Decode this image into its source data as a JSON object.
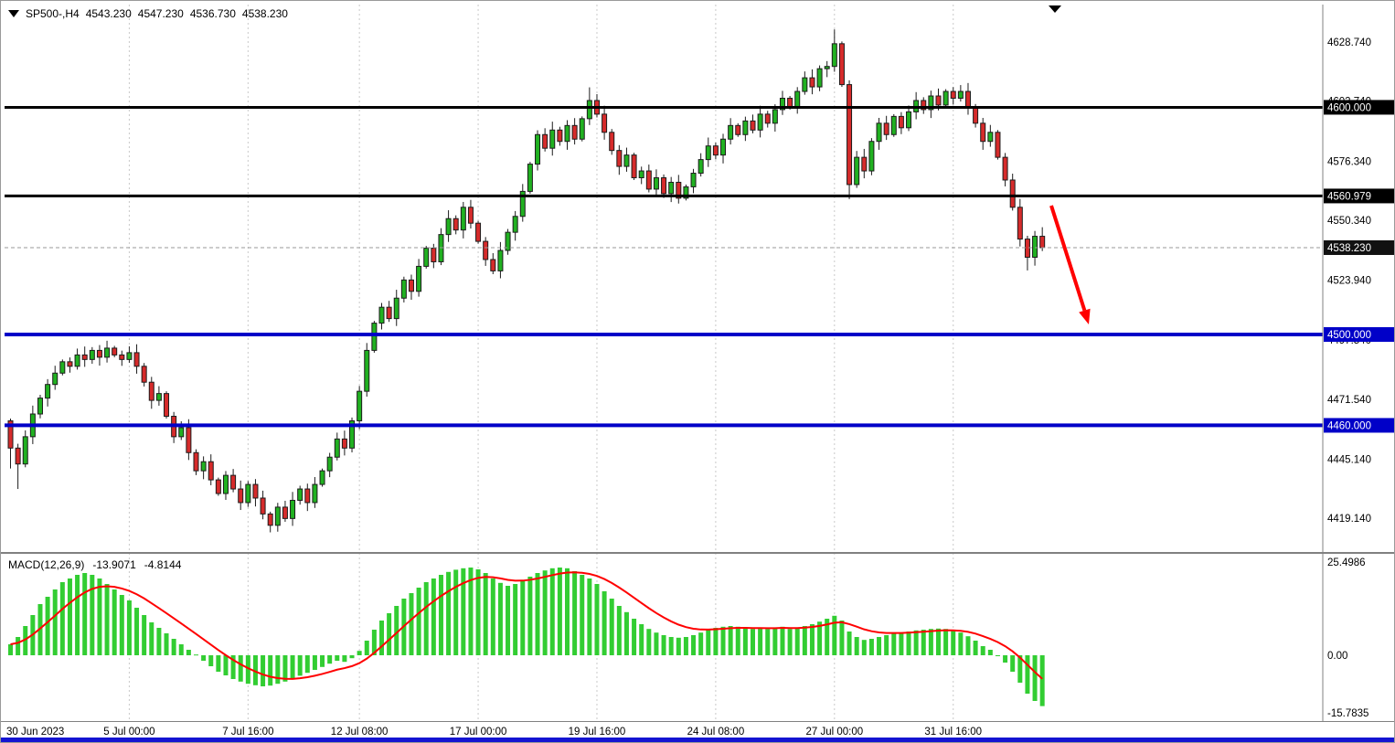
{
  "header": {
    "symbol_tf": "SP500-,H4",
    "open": "4543.230",
    "high": "4547.230",
    "low": "4536.730",
    "close": "4538.230"
  },
  "chart_data": {
    "type": "candlestick",
    "symbol": "SP500-",
    "timeframe": "H4",
    "price_ylim": [
      4404.6,
      4643.6
    ],
    "first_open": 4462,
    "closes": [
      4450,
      4443,
      4455,
      4465,
      4472,
      4478,
      4483,
      4488,
      4486,
      4491,
      4489,
      4493,
      4490,
      4494,
      4491,
      4489,
      4492,
      4486,
      4479,
      4471,
      4474,
      4464,
      4455,
      4459,
      4448,
      4440,
      4444,
      4436,
      4430,
      4438,
      4432,
      4426,
      4434,
      4428,
      4421,
      4416,
      4424,
      4419,
      4427,
      4432,
      4426,
      4434,
      4440,
      4446,
      4454,
      4450,
      4462,
      4475,
      4493,
      4505,
      4512,
      4507,
      4516,
      4524,
      4519,
      4530,
      4538,
      4532,
      4544,
      4551,
      4546,
      4556,
      4549,
      4541,
      4533,
      4528,
      4537,
      4545,
      4552,
      4563,
      4575,
      4588,
      4582,
      4590,
      4585,
      4592,
      4586,
      4595,
      4603,
      4597,
      4589,
      4581,
      4574,
      4579,
      4569,
      4572,
      4564,
      4569,
      4562,
      4567,
      4560,
      4565,
      4571,
      4577,
      4583,
      4579,
      4586,
      4592,
      4588,
      4594,
      4590,
      4597,
      4593,
      4599,
      4604,
      4600,
      4607,
      4613,
      4609,
      4617,
      4618,
      4628,
      4610,
      4566,
      4578,
      4572,
      4585,
      4593,
      4588,
      4596,
      4591,
      4598,
      4603,
      4599,
      4605,
      4601,
      4607,
      4604,
      4607,
      4600,
      4593,
      4585,
      4589,
      4578,
      4568,
      4556,
      4542,
      4534,
      4543.23,
      4538.23
    ],
    "wick_overrides": {
      "0": {
        "low": 4441
      },
      "1": {
        "low": 4432
      },
      "35": {
        "low": 4412.9
      },
      "78": {
        "high": 4608.8
      },
      "111": {
        "high": 4634.3
      },
      "113": {
        "low": 4559.6
      },
      "137": {
        "low": 4528.2
      },
      "139": {
        "high": 4547.23,
        "low": 4536.73
      }
    },
    "price_axis": {
      "ticks": [
        "4628.740",
        "4602.740",
        "4576.340",
        "4550.340",
        "4523.940",
        "4497.540",
        "4471.540",
        "4445.140",
        "4419.140"
      ]
    },
    "levels": [
      {
        "price": 4600.0,
        "label": "4600.000",
        "line_color": "#000000",
        "tag_color": "#000000",
        "width": 3,
        "style": "solid"
      },
      {
        "price": 4560.979,
        "label": "4560.979",
        "line_color": "#000000",
        "tag_color": "#000000",
        "width": 3,
        "style": "solid"
      },
      {
        "price": 4538.23,
        "label": "4538.230",
        "line_color": "#9a9a9a",
        "tag_color": "#111111",
        "width": 1,
        "style": "current"
      },
      {
        "price": 4500.0,
        "label": "4500.000",
        "line_color": "#0000c8",
        "tag_color": "#0000c8",
        "width": 4,
        "style": "solid"
      },
      {
        "price": 4460.0,
        "label": "4460.000",
        "line_color": "#0000c8",
        "tag_color": "#0000c8",
        "width": 4,
        "style": "solid"
      }
    ],
    "time_labels": [
      {
        "index": 0,
        "label": "30 Jun 2023"
      },
      {
        "index": 16,
        "label": "5 Jul 00:00"
      },
      {
        "index": 32,
        "label": "7 Jul 16:00"
      },
      {
        "index": 47,
        "label": "12 Jul 08:00"
      },
      {
        "index": 63,
        "label": "17 Jul 00:00"
      },
      {
        "index": 79,
        "label": "19 Jul 16:00"
      },
      {
        "index": 95,
        "label": "24 Jul 08:00"
      },
      {
        "index": 111,
        "label": "27 Jul 00:00"
      },
      {
        "index": 127,
        "label": "31 Jul 16:00"
      }
    ],
    "macd": {
      "label": "MACD(12,26,9)",
      "main_value": "-13.9071",
      "signal_value": "-4.8144",
      "signal_period": 9,
      "ylim": [
        -17.8,
        27.8
      ],
      "scale_ticks": [
        {
          "value": 25.4986,
          "label": "25.4986"
        },
        {
          "value": 0,
          "label": "0.00"
        },
        {
          "value": -15.7835,
          "label": "-15.7835"
        }
      ],
      "histogram": [
        3,
        5,
        8,
        11,
        14,
        16,
        18,
        20,
        21,
        22,
        22.5,
        22,
        21,
        19.5,
        18,
        16.5,
        15,
        13,
        11,
        9,
        7.5,
        6,
        4.5,
        3,
        1.5,
        0.2,
        -1.5,
        -3,
        -4.5,
        -5.5,
        -6.5,
        -7.2,
        -7.8,
        -8.2,
        -8.5,
        -8.3,
        -7.8,
        -7.2,
        -6.5,
        -5.6,
        -4.8,
        -4,
        -3.2,
        -2.3,
        -1.5,
        -1.8,
        -0.8,
        1.2,
        4,
        7,
        9.5,
        11.5,
        13.5,
        15.5,
        17,
        18.5,
        20,
        21,
        22,
        22.8,
        23.4,
        23.8,
        24,
        23.5,
        22.5,
        21,
        19.8,
        19,
        19.5,
        20.5,
        21.5,
        22.5,
        23.2,
        23.8,
        24,
        23.8,
        23,
        22,
        21,
        19.5,
        17.5,
        15.5,
        13.5,
        11.8,
        10,
        8.5,
        7.2,
        6.2,
        5.5,
        5,
        4.8,
        5,
        5.5,
        6.2,
        7,
        7.5,
        7.8,
        8,
        7.8,
        7.5,
        7.2,
        7.5,
        7.2,
        7.5,
        7.8,
        7.2,
        7.5,
        8,
        8.5,
        9.2,
        10,
        10.8,
        9.5,
        6.5,
        5,
        4.2,
        4.5,
        5,
        5.5,
        6,
        6.2,
        6.5,
        6.8,
        7,
        7.2,
        7.3,
        7.2,
        6.8,
        6.2,
        5.2,
        4,
        2.5,
        1.5,
        0,
        -2,
        -4.5,
        -7.5,
        -10.5,
        -12.5,
        -13.9071
      ]
    },
    "colors": {
      "bull": "#21b121",
      "bear": "#d62b2b",
      "outline": "#1c1c1c",
      "macd_hist": "#32cd32",
      "macd_signal": "#ff0000",
      "level_black": "#000000",
      "level_blue": "#0000c8",
      "arrow": "#ff0000",
      "grid": "#c9c9c9",
      "scale_text": "#000000",
      "tag_text": "#ffffff",
      "separator": "#808080",
      "window_bottom": "#1414d2"
    }
  }
}
